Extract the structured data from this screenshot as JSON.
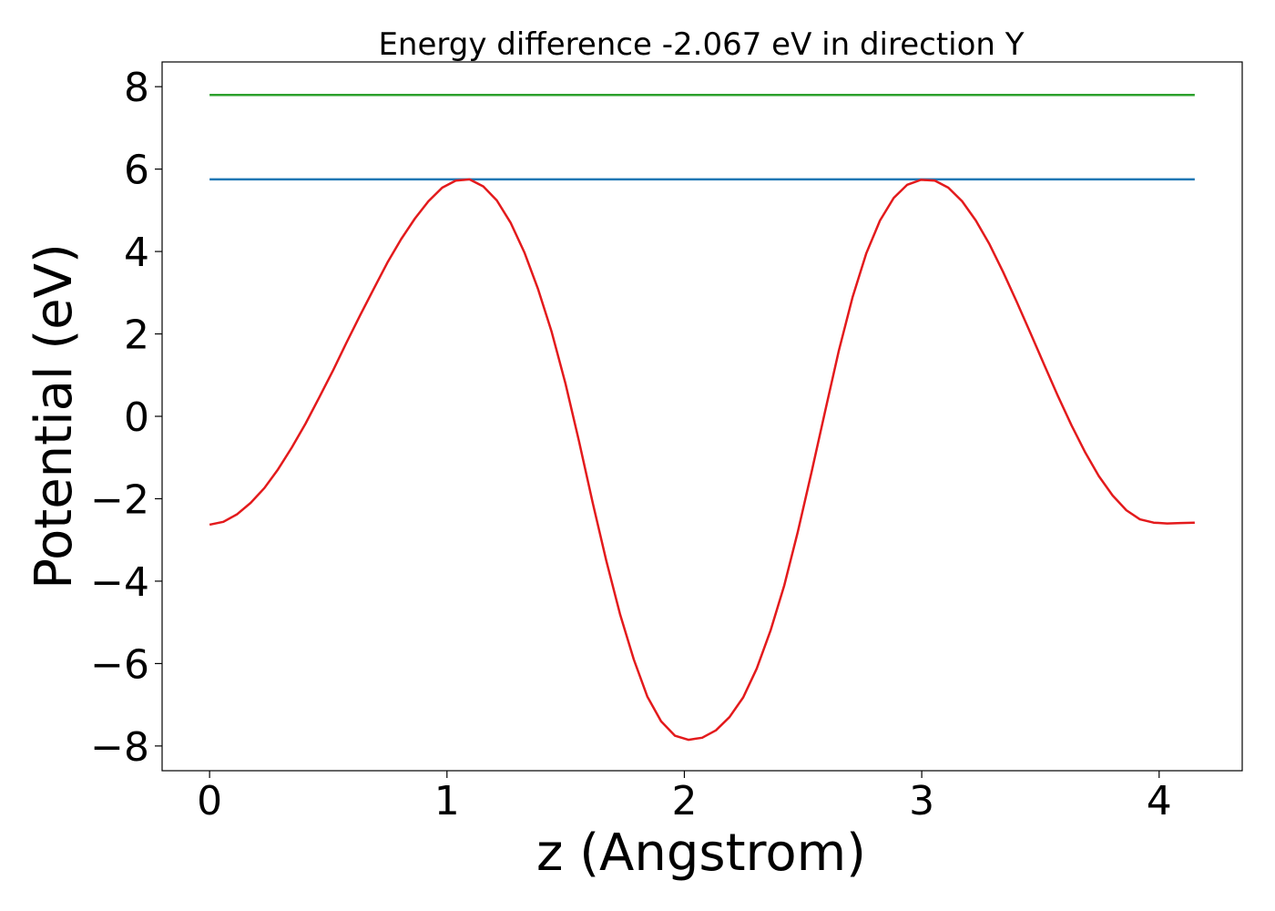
{
  "chart_data": {
    "type": "line",
    "title": "Energy difference -2.067 eV in direction Y",
    "xlabel": "z (Angstrom)",
    "ylabel": "Potential (eV)",
    "xlim": [
      -0.2,
      4.35
    ],
    "ylim": [
      -8.6,
      8.6
    ],
    "x_ticks": [
      0,
      1,
      2,
      3,
      4
    ],
    "x_tick_labels": [
      "0",
      "1",
      "2",
      "3",
      "4"
    ],
    "y_ticks": [
      8,
      6,
      4,
      2,
      0,
      -2,
      -4,
      -6,
      -8
    ],
    "y_tick_labels": [
      "8",
      "6",
      "4",
      "2",
      "0",
      "−2",
      "−4",
      "−6",
      "−8"
    ],
    "grid": false,
    "series": [
      {
        "color": "#2ca02c",
        "style": "line",
        "x": [
          0,
          4.15
        ],
        "y": [
          7.8,
          7.8
        ]
      },
      {
        "color": "#1f77b4",
        "style": "line",
        "x": [
          0,
          4.15
        ],
        "y": [
          5.75,
          5.75
        ]
      },
      {
        "color": "#e31a1c",
        "style": "line",
        "x": [
          0,
          0.058,
          0.115,
          0.173,
          0.231,
          0.288,
          0.346,
          0.404,
          0.461,
          0.519,
          0.576,
          0.634,
          0.692,
          0.749,
          0.807,
          0.865,
          0.922,
          0.98,
          1.037,
          1.095,
          1.153,
          1.21,
          1.268,
          1.326,
          1.383,
          1.441,
          1.499,
          1.556,
          1.614,
          1.671,
          1.729,
          1.787,
          1.844,
          1.902,
          1.96,
          2.017,
          2.075,
          2.133,
          2.19,
          2.248,
          2.305,
          2.363,
          2.421,
          2.478,
          2.536,
          2.594,
          2.651,
          2.709,
          2.766,
          2.824,
          2.882,
          2.939,
          2.997,
          3.055,
          3.112,
          3.17,
          3.228,
          3.285,
          3.343,
          3.4,
          3.458,
          3.516,
          3.573,
          3.631,
          3.689,
          3.746,
          3.804,
          3.862,
          3.919,
          3.977,
          4.034,
          4.092,
          4.15
        ],
        "y": [
          -2.63,
          -2.56,
          -2.38,
          -2.1,
          -1.74,
          -1.29,
          -0.76,
          -0.18,
          0.45,
          1.1,
          1.78,
          2.45,
          3.1,
          3.73,
          4.3,
          4.8,
          5.22,
          5.55,
          5.72,
          5.75,
          5.58,
          5.24,
          4.7,
          3.98,
          3.1,
          2.05,
          0.8,
          -0.6,
          -2.1,
          -3.5,
          -4.8,
          -5.9,
          -6.8,
          -7.4,
          -7.75,
          -7.85,
          -7.8,
          -7.62,
          -7.3,
          -6.82,
          -6.12,
          -5.2,
          -4.1,
          -2.8,
          -1.35,
          0.15,
          1.6,
          2.9,
          3.95,
          4.75,
          5.3,
          5.62,
          5.74,
          5.72,
          5.55,
          5.22,
          4.75,
          4.18,
          3.5,
          2.78,
          2.02,
          1.25,
          0.5,
          -0.22,
          -0.88,
          -1.45,
          -1.92,
          -2.28,
          -2.5,
          -2.58,
          -2.6,
          -2.59,
          -2.58
        ]
      }
    ]
  }
}
